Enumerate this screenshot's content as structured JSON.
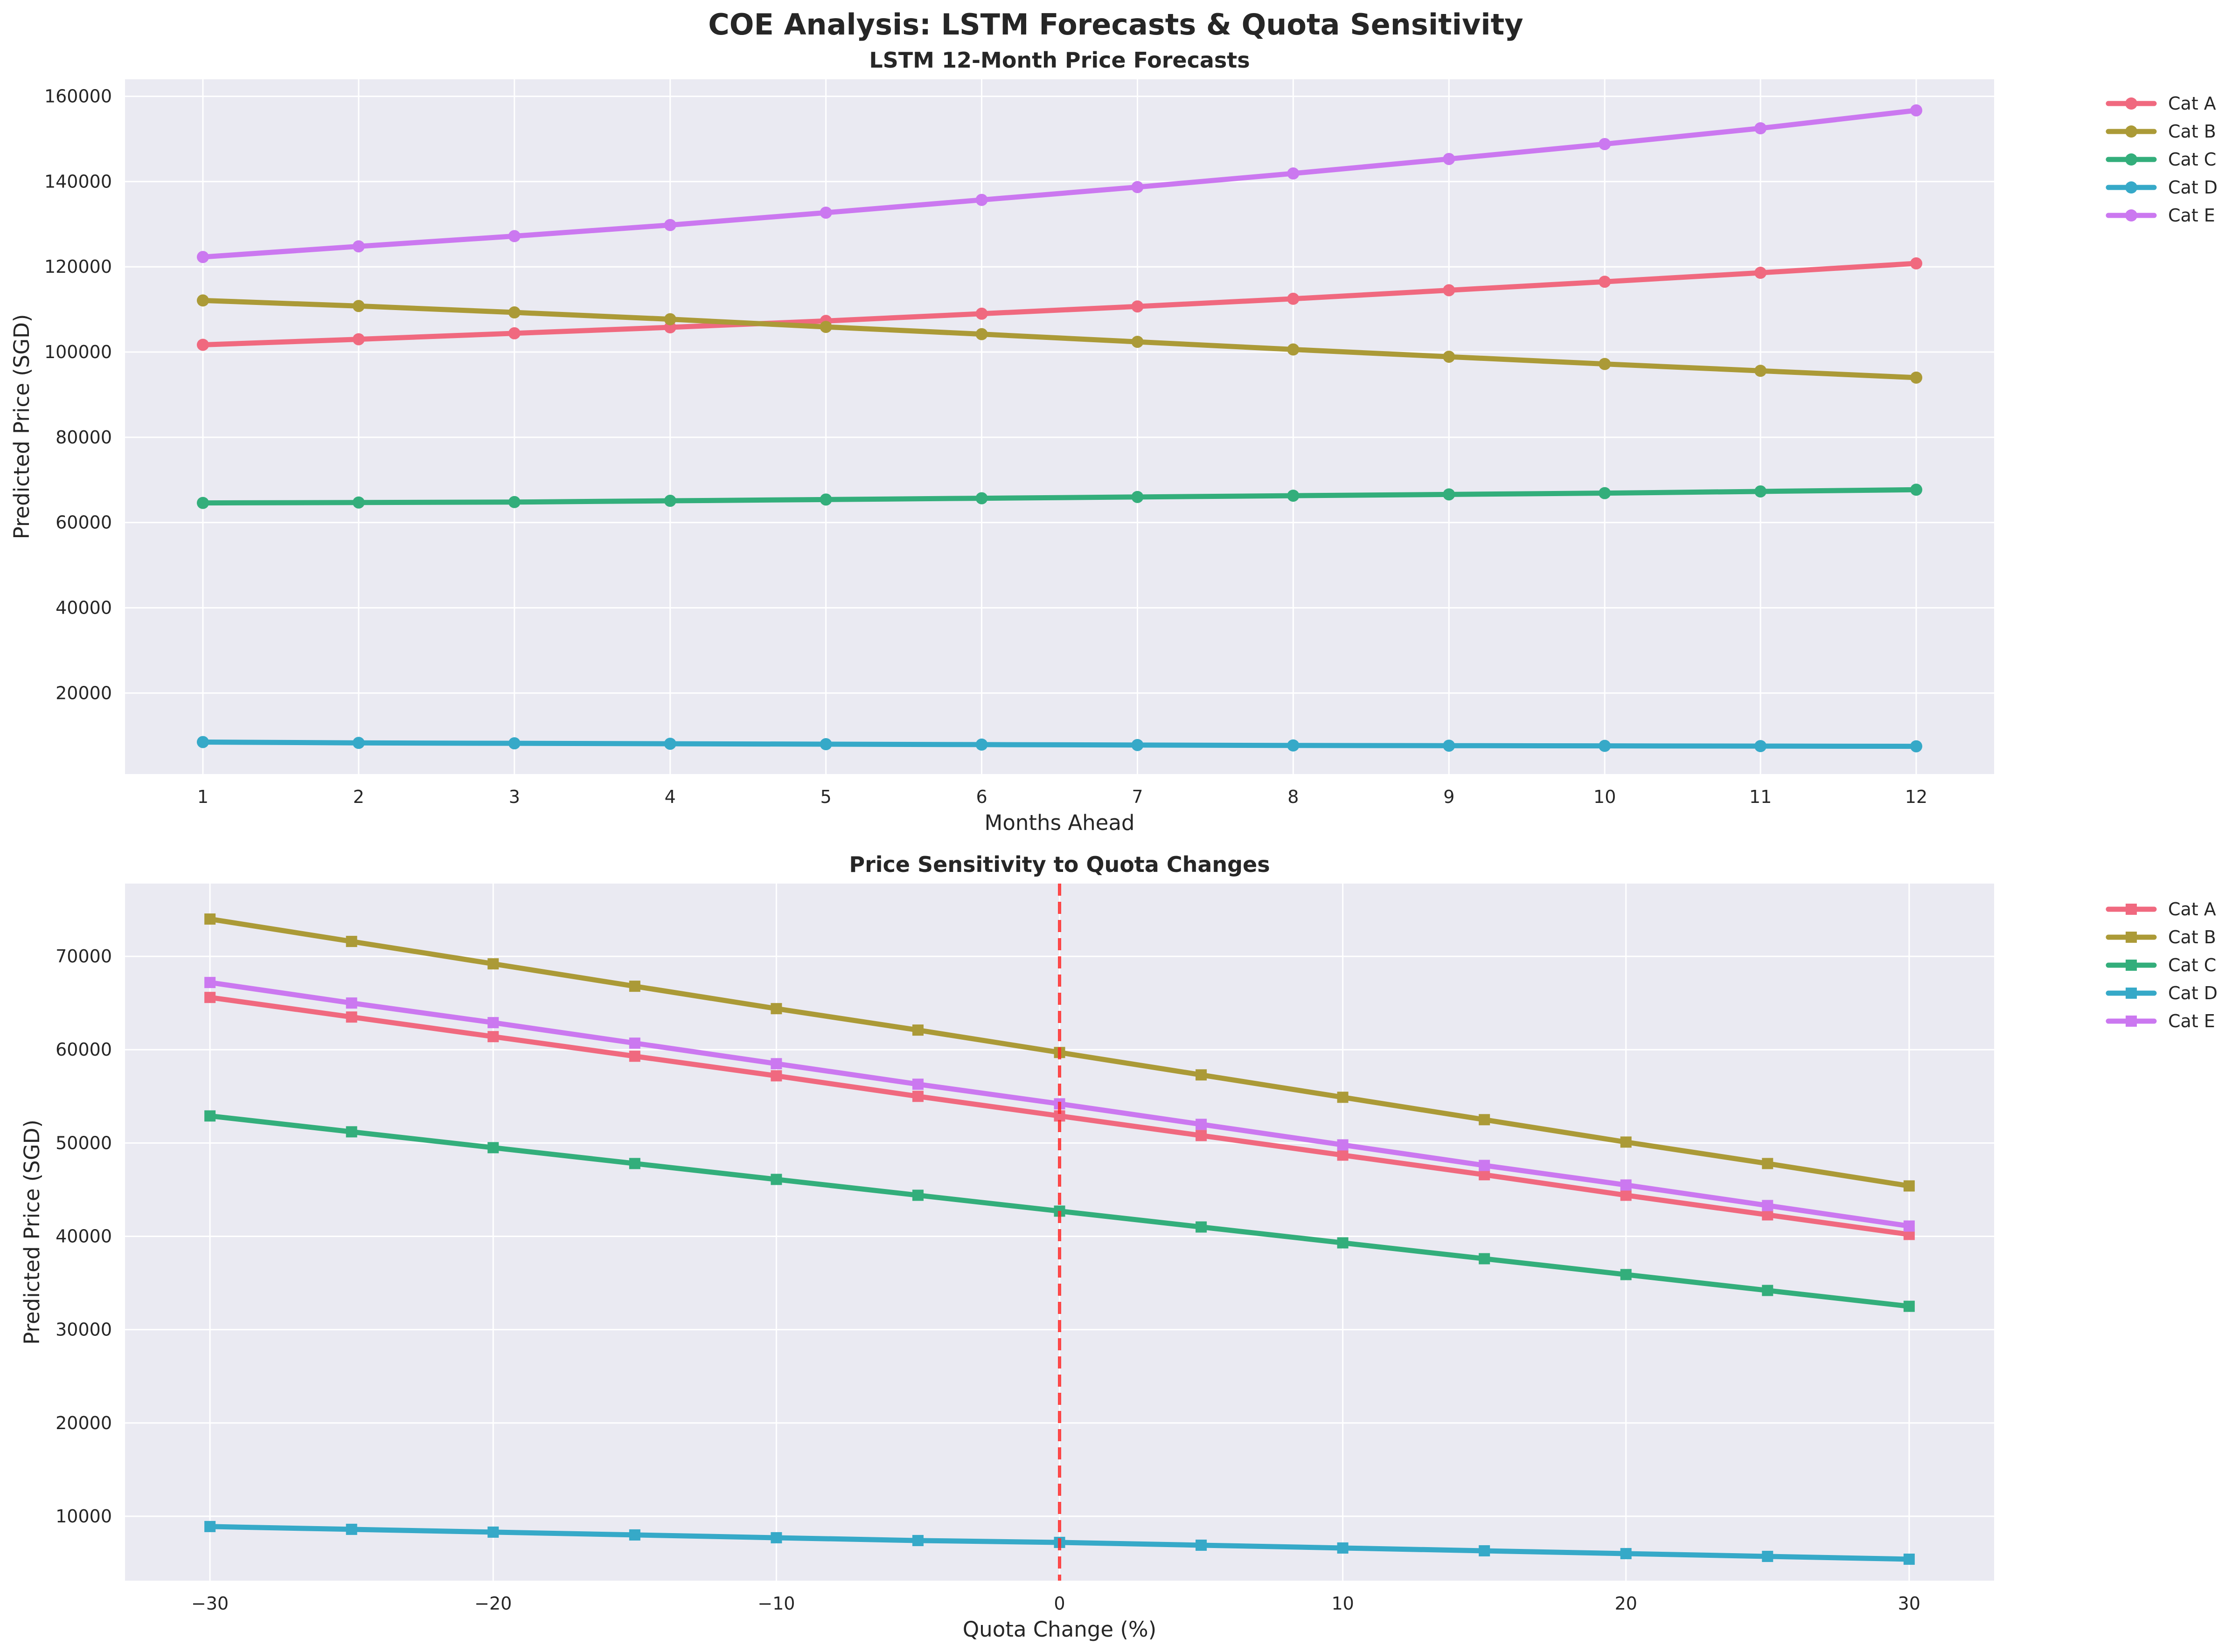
{
  "figure": {
    "suptitle": "COE Analysis: LSTM Forecasts & Quota Sensitivity"
  },
  "chart_data": [
    {
      "type": "line",
      "title": "LSTM 12-Month Price Forecasts",
      "xlabel": "Months Ahead",
      "ylabel": "Predicted Price (SGD)",
      "x": [
        1,
        2,
        3,
        4,
        5,
        6,
        7,
        8,
        9,
        10,
        11,
        12
      ],
      "xticks": [
        1,
        2,
        3,
        4,
        5,
        6,
        7,
        8,
        9,
        10,
        11,
        12
      ],
      "yticks": [
        20000,
        40000,
        60000,
        80000,
        100000,
        120000,
        140000,
        160000
      ],
      "xlim": [
        0.5,
        12.5
      ],
      "ylim": [
        1000,
        164000
      ],
      "marker": "circle",
      "grid": true,
      "legend_position": "outside-right",
      "series": [
        {
          "name": "Cat A",
          "color": "#f0697f",
          "values": [
            101700,
            103000,
            104400,
            105800,
            107300,
            109000,
            110700,
            112500,
            114500,
            116500,
            118600,
            120800
          ]
        },
        {
          "name": "Cat B",
          "color": "#ab9a37",
          "values": [
            112100,
            110800,
            109300,
            107700,
            105900,
            104200,
            102400,
            100600,
            98900,
            97200,
            95600,
            94000
          ]
        },
        {
          "name": "Cat C",
          "color": "#33ae7b",
          "values": [
            64600,
            64700,
            64800,
            65100,
            65400,
            65700,
            66000,
            66300,
            66600,
            66900,
            67300,
            67700
          ]
        },
        {
          "name": "Cat D",
          "color": "#36a9c8",
          "values": [
            8500,
            8300,
            8200,
            8100,
            8000,
            7900,
            7800,
            7700,
            7650,
            7600,
            7550,
            7500
          ]
        },
        {
          "name": "Cat E",
          "color": "#cb78f0",
          "values": [
            122300,
            124800,
            127200,
            129800,
            132700,
            135700,
            138700,
            141900,
            145300,
            148800,
            152500,
            156700
          ]
        }
      ]
    },
    {
      "type": "line",
      "title": "Price Sensitivity to Quota Changes",
      "xlabel": "Quota Change (%)",
      "ylabel": "Predicted Price (SGD)",
      "x": [
        -30,
        -25,
        -20,
        -15,
        -10,
        -5,
        0,
        5,
        10,
        15,
        20,
        25,
        30
      ],
      "xticks": [
        -30,
        -20,
        -10,
        0,
        10,
        20,
        30
      ],
      "yticks": [
        10000,
        20000,
        30000,
        40000,
        50000,
        60000,
        70000
      ],
      "xlim": [
        -33,
        33
      ],
      "ylim": [
        3100,
        77800
      ],
      "marker": "square",
      "grid": true,
      "reference_line": {
        "x": 0,
        "style": "dashed",
        "color": "#ff2a2a"
      },
      "legend_position": "outside-right",
      "series": [
        {
          "name": "Cat A",
          "color": "#f0697f",
          "values": [
            65600,
            63500,
            61400,
            59300,
            57200,
            55000,
            52900,
            50800,
            48700,
            46600,
            44400,
            42300,
            40200
          ]
        },
        {
          "name": "Cat B",
          "color": "#ab9a37",
          "values": [
            74000,
            71600,
            69200,
            66800,
            64400,
            62100,
            59700,
            57300,
            54900,
            52500,
            50100,
            47800,
            45400
          ]
        },
        {
          "name": "Cat C",
          "color": "#33ae7b",
          "values": [
            52900,
            51200,
            49500,
            47800,
            46100,
            44400,
            42700,
            41000,
            39300,
            37600,
            35900,
            34200,
            32500
          ]
        },
        {
          "name": "Cat D",
          "color": "#36a9c8",
          "values": [
            8900,
            8600,
            8300,
            8000,
            7700,
            7400,
            7200,
            6900,
            6600,
            6300,
            6000,
            5700,
            5400
          ]
        },
        {
          "name": "Cat E",
          "color": "#cb78f0",
          "values": [
            67200,
            65000,
            62900,
            60700,
            58500,
            56300,
            54200,
            52000,
            49800,
            47600,
            45500,
            43300,
            41100
          ]
        }
      ]
    }
  ]
}
